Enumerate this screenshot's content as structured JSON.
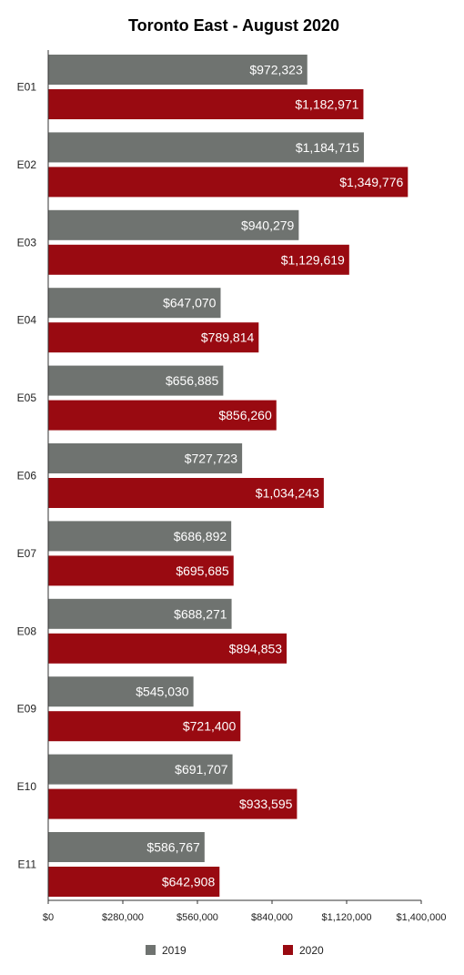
{
  "chart_data": {
    "type": "bar",
    "orientation": "horizontal",
    "title": "Toronto East - August 2020",
    "categories": [
      "E01",
      "E02",
      "E03",
      "E04",
      "E05",
      "E06",
      "E07",
      "E08",
      "E09",
      "E10",
      "E11"
    ],
    "series": [
      {
        "name": "2019",
        "color": "#6f7370",
        "values": [
          972323,
          1184715,
          940279,
          647070,
          656885,
          727723,
          686892,
          688271,
          545030,
          691707,
          586767
        ],
        "labels": [
          "$972,323",
          "$1,184,715",
          "$940,279",
          "$647,070",
          "$656,885",
          "$727,723",
          "$686,892",
          "$688,271",
          "$545,030",
          "$691,707",
          "$586,767"
        ]
      },
      {
        "name": "2020",
        "color": "#990a11",
        "values": [
          1182971,
          1349776,
          1129619,
          789814,
          856260,
          1034243,
          695685,
          894853,
          721400,
          933595,
          642908
        ],
        "labels": [
          "$1,182,971",
          "$1,349,776",
          "$1,129,619",
          "$789,814",
          "$856,260",
          "$1,034,243",
          "$695,685",
          "$894,853",
          "$721,400",
          "$933,595",
          "$642,908"
        ]
      }
    ],
    "xlim": [
      0,
      1400000
    ],
    "xticks": [
      0,
      280000,
      560000,
      840000,
      1120000,
      1400000
    ],
    "xtick_labels": [
      "$0",
      "$280,000",
      "$560,000",
      "$840,000",
      "$1,120,000",
      "$1,400,000"
    ],
    "grid": false,
    "legend_position": "bottom"
  }
}
